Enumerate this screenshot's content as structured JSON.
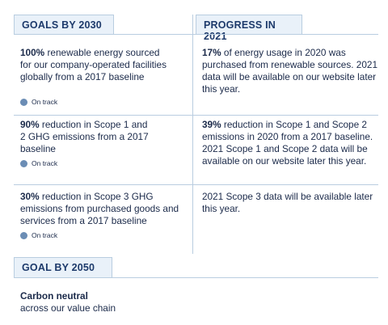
{
  "headers": {
    "goals_2030": "GOALS BY 2030",
    "progress_2021": "PROGRESS IN 2021",
    "goal_2050": "GOAL BY 2050"
  },
  "rows": [
    {
      "goal_bold": "100%",
      "goal_text": " renewable energy sourced for our company-operated facilities globally from a 2017 baseline",
      "status": "On track",
      "progress_bold": "17%",
      "progress_text": " of energy usage in 2020 was purchased from renewable sources. 2021 data will be available on our website later this year."
    },
    {
      "goal_bold": "90%",
      "goal_text": " reduction in Scope 1 and 2 GHG emissions from a 2017 baseline",
      "status": "On track",
      "progress_bold": "39%",
      "progress_text": " reduction in Scope 1 and Scope 2 emissions in 2020 from a 2017 baseline. 2021 Scope 1 and Scope 2 data will be available on our website later this year."
    },
    {
      "goal_bold": "30%",
      "goal_text": " reduction in Scope 3 GHG emissions from purchased goods and services from a 2017 baseline",
      "status": "On track",
      "progress_bold": "",
      "progress_text": "2021 Scope 3 data will be available later this year."
    }
  ],
  "goal_2050": {
    "title": "Carbon neutral",
    "text": "across our value chain"
  },
  "colors": {
    "header_bg": "#e9f1f9",
    "border": "#b9cde0",
    "text": "#1b2a4a",
    "status_dot": "#6b8db5"
  }
}
